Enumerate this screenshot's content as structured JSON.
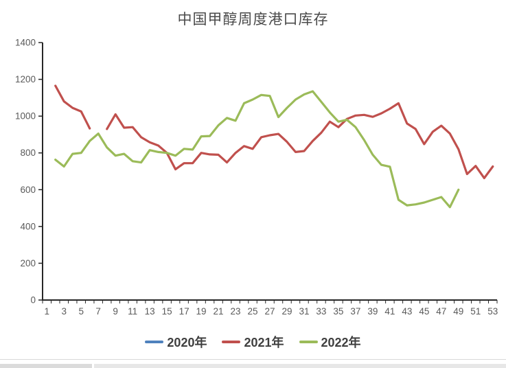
{
  "title": "中国甲醇周度港口库存",
  "chart_data": {
    "type": "line",
    "title": "中国甲醇周度港口库存",
    "xlabel": "",
    "ylabel": "",
    "ylim": [
      0,
      1400
    ],
    "yticks": [
      0,
      200,
      400,
      600,
      800,
      1000,
      1200,
      1400
    ],
    "xticklabels": [
      1,
      3,
      5,
      7,
      9,
      11,
      13,
      15,
      17,
      19,
      21,
      23,
      25,
      27,
      29,
      31,
      33,
      35,
      37,
      39,
      41,
      43,
      45,
      47,
      49,
      51,
      53
    ],
    "grid": false,
    "legend_position": "bottom",
    "categories": [
      1,
      2,
      3,
      4,
      5,
      6,
      7,
      8,
      9,
      10,
      11,
      12,
      13,
      14,
      15,
      16,
      17,
      18,
      19,
      20,
      21,
      22,
      23,
      24,
      25,
      26,
      27,
      28,
      29,
      30,
      31,
      32,
      33,
      34,
      35,
      36,
      37,
      38,
      39,
      40,
      41,
      42,
      43,
      44,
      45,
      46,
      47,
      48,
      49,
      50,
      51,
      52,
      53
    ],
    "series": [
      {
        "name": "2020年",
        "color": "#4F81BD",
        "values": [
          null,
          null,
          null,
          null,
          null,
          null,
          null,
          null,
          null,
          null,
          null,
          null,
          null,
          null,
          null,
          null,
          null,
          null,
          null,
          null,
          null,
          null,
          null,
          null,
          null,
          null,
          null,
          null,
          null,
          null,
          null,
          null,
          null,
          null,
          null,
          null,
          null,
          null,
          null,
          null,
          null,
          null,
          null,
          null,
          null,
          null,
          null,
          null,
          null,
          null,
          null,
          null,
          null
        ]
      },
      {
        "name": "2021年",
        "color": "#C0504D",
        "values": [
          null,
          1165,
          1080,
          1045,
          1025,
          933,
          null,
          930,
          1010,
          937,
          940,
          885,
          858,
          840,
          800,
          711,
          744,
          744,
          800,
          792,
          790,
          748,
          800,
          837,
          822,
          885,
          896,
          903,
          860,
          805,
          810,
          865,
          910,
          970,
          940,
          985,
          1003,
          1007,
          996,
          1015,
          1040,
          1070,
          960,
          930,
          848,
          915,
          948,
          905,
          820,
          685,
          729,
          663,
          726
        ]
      },
      {
        "name": "2022年",
        "color": "#9BBB59",
        "values": [
          null,
          763,
          726,
          795,
          800,
          865,
          905,
          830,
          785,
          795,
          755,
          748,
          815,
          805,
          800,
          785,
          822,
          818,
          890,
          892,
          950,
          990,
          975,
          1070,
          1090,
          1115,
          1110,
          995,
          1045,
          1090,
          1118,
          1135,
          1078,
          1020,
          970,
          980,
          940,
          870,
          790,
          735,
          725,
          545,
          515,
          520,
          530,
          545,
          560,
          505,
          600,
          null,
          null,
          null,
          null
        ]
      }
    ]
  }
}
